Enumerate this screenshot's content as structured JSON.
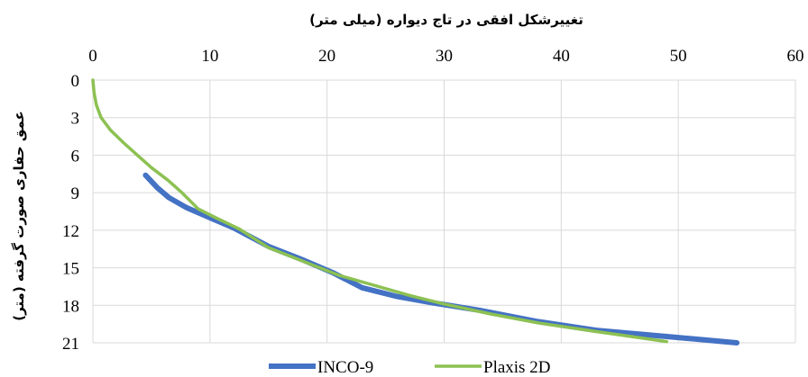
{
  "chart_data": {
    "type": "line",
    "title": "",
    "xlabel": "تغییرشکل افقی در تاج دیواره (میلی متر)",
    "ylabel": "عمق حفاری صورت گرفته (متر)",
    "x_axis_position": "top",
    "y_inverted": true,
    "xlim": [
      0,
      60
    ],
    "ylim": [
      0,
      21
    ],
    "xticks": [
      0,
      10,
      20,
      30,
      40,
      50,
      60
    ],
    "yticks": [
      0,
      3,
      6,
      9,
      12,
      15,
      18,
      21
    ],
    "grid": true,
    "legend_position": "bottom",
    "series": [
      {
        "name": "INCO-9",
        "color": "#4472c4",
        "points": [
          [
            4.5,
            7.6
          ],
          [
            5.5,
            8.6
          ],
          [
            6.5,
            9.4
          ],
          [
            8.0,
            10.2
          ],
          [
            10.0,
            11.0
          ],
          [
            12.0,
            11.8
          ],
          [
            15.0,
            13.3
          ],
          [
            18.0,
            14.4
          ],
          [
            20.5,
            15.4
          ],
          [
            23.0,
            16.6
          ],
          [
            26.0,
            17.3
          ],
          [
            29.0,
            17.8
          ],
          [
            33.0,
            18.4
          ],
          [
            38.0,
            19.3
          ],
          [
            43.0,
            20.0
          ],
          [
            49.0,
            20.5
          ],
          [
            55.0,
            21.0
          ]
        ]
      },
      {
        "name": "Plaxis 2D",
        "color": "#8cc152",
        "points": [
          [
            0,
            0
          ],
          [
            0.1,
            1.0
          ],
          [
            0.3,
            2.0
          ],
          [
            0.7,
            3.0
          ],
          [
            1.5,
            4.0
          ],
          [
            2.6,
            5.0
          ],
          [
            3.8,
            6.0
          ],
          [
            5.0,
            7.0
          ],
          [
            6.4,
            8.0
          ],
          [
            7.6,
            9.0
          ],
          [
            9.0,
            10.3
          ],
          [
            10.5,
            11.0
          ],
          [
            12.5,
            11.9
          ],
          [
            15.0,
            13.4
          ],
          [
            18.0,
            14.5
          ],
          [
            21.0,
            15.6
          ],
          [
            24.0,
            16.4
          ],
          [
            27.0,
            17.2
          ],
          [
            30.0,
            17.9
          ],
          [
            34.0,
            18.7
          ],
          [
            38.0,
            19.4
          ],
          [
            43.0,
            20.1
          ],
          [
            49.0,
            20.9
          ]
        ]
      }
    ]
  }
}
